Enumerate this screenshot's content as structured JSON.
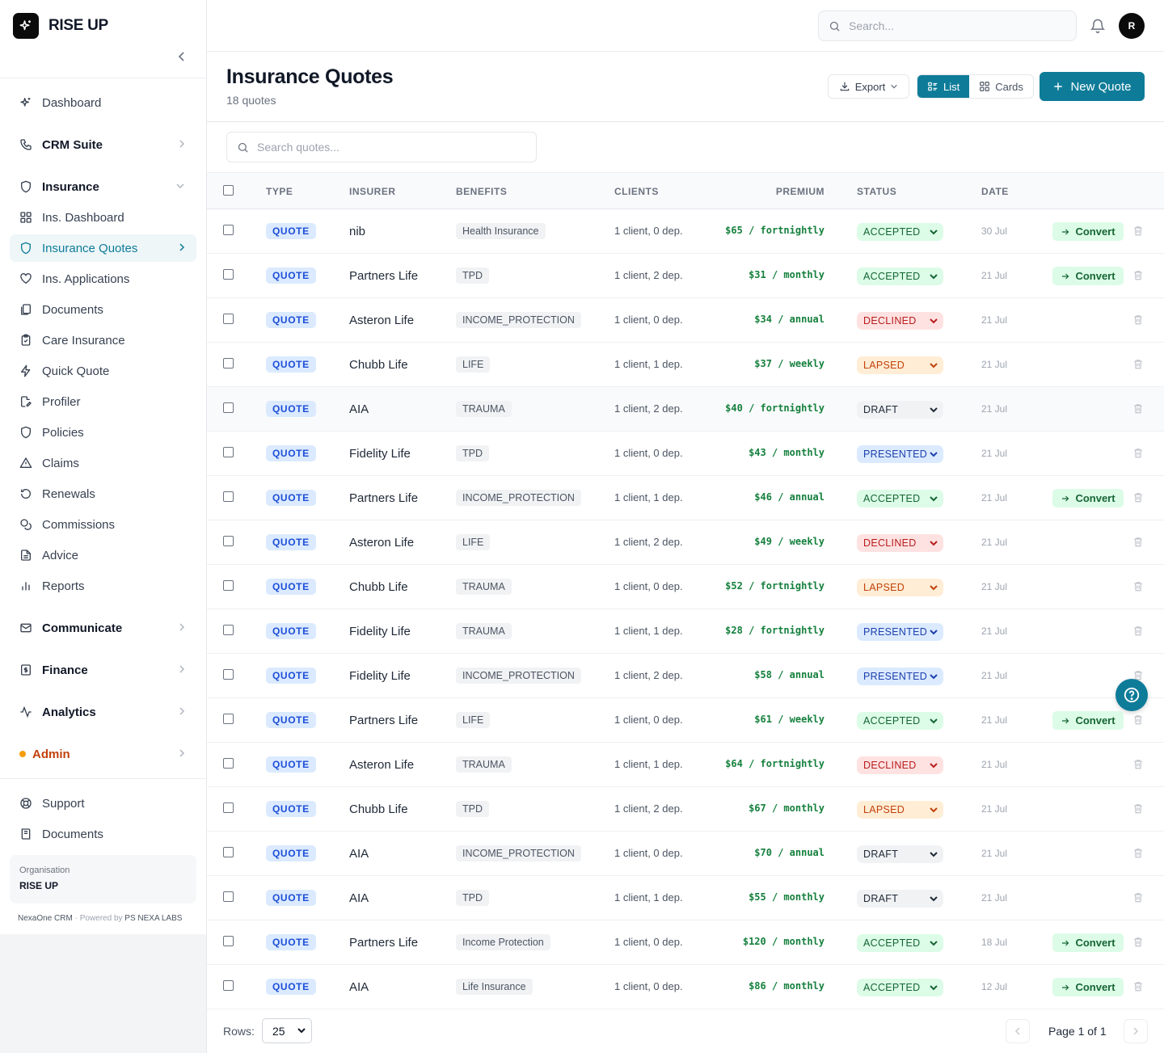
{
  "brand": {
    "name": "RISE UP"
  },
  "topbar": {
    "search_placeholder": "Search...",
    "avatar_initial": "R"
  },
  "sidebar": {
    "dashboard": "Dashboard",
    "crm": "CRM Suite",
    "insurance": "Insurance",
    "items": [
      {
        "label": "Ins. Dashboard",
        "icon": "grid-icon"
      },
      {
        "label": "Insurance Quotes",
        "icon": "shield-icon",
        "active": true
      },
      {
        "label": "Ins. Applications",
        "icon": "heart-icon"
      },
      {
        "label": "Documents",
        "icon": "files-icon"
      },
      {
        "label": "Care Insurance",
        "icon": "clipboard-icon"
      },
      {
        "label": "Quick Quote",
        "icon": "bolt-icon"
      },
      {
        "label": "Profiler",
        "icon": "file-edit-icon"
      },
      {
        "label": "Policies",
        "icon": "shield-icon"
      },
      {
        "label": "Claims",
        "icon": "warning-icon"
      },
      {
        "label": "Renewals",
        "icon": "refresh-icon"
      },
      {
        "label": "Commissions",
        "icon": "coins-icon"
      },
      {
        "label": "Advice",
        "icon": "document-icon"
      },
      {
        "label": "Reports",
        "icon": "bar-chart-icon"
      }
    ],
    "communicate": "Communicate",
    "finance": "Finance",
    "analytics": "Analytics",
    "admin": "Admin",
    "support": "Support",
    "documents": "Documents",
    "org_label": "Organisation",
    "org_name": "RISE UP",
    "powered_app": "NexaOne CRM",
    "powered_by": " · Powered by ",
    "powered_company": "PS NEXA LABS"
  },
  "page": {
    "title": "Insurance Quotes",
    "count": "18 quotes",
    "export_label": "Export",
    "list_label": "List",
    "cards_label": "Cards",
    "new_label": "New Quote",
    "search_placeholder": "Search quotes..."
  },
  "table": {
    "columns": {
      "type": "TYPE",
      "insurer": "INSURER",
      "benefits": "BENEFITS",
      "clients": "CLIENTS",
      "premium": "PREMIUM",
      "status": "STATUS",
      "date": "DATE"
    },
    "convert_label": "Convert",
    "rows": [
      {
        "type": "QUOTE",
        "insurer": "nib",
        "benefit": "Health Insurance",
        "clients": "1 client, 0 dep.",
        "premium": "$65 / fortnightly",
        "status": "ACCEPTED",
        "date": "30 Jul",
        "convert": true
      },
      {
        "type": "QUOTE",
        "insurer": "Partners Life",
        "benefit": "TPD",
        "clients": "1 client, 2 dep.",
        "premium": "$31 / monthly",
        "status": "ACCEPTED",
        "date": "21 Jul",
        "convert": true
      },
      {
        "type": "QUOTE",
        "insurer": "Asteron Life",
        "benefit": "INCOME_PROTECTION",
        "clients": "1 client, 0 dep.",
        "premium": "$34 / annual",
        "status": "DECLINED",
        "date": "21 Jul",
        "convert": false
      },
      {
        "type": "QUOTE",
        "insurer": "Chubb Life",
        "benefit": "LIFE",
        "clients": "1 client, 1 dep.",
        "premium": "$37 / weekly",
        "status": "LAPSED",
        "date": "21 Jul",
        "convert": false
      },
      {
        "type": "QUOTE",
        "insurer": "AIA",
        "benefit": "TRAUMA",
        "clients": "1 client, 2 dep.",
        "premium": "$40 / fortnightly",
        "status": "DRAFT",
        "date": "21 Jul",
        "convert": false
      },
      {
        "type": "QUOTE",
        "insurer": "Fidelity Life",
        "benefit": "TPD",
        "clients": "1 client, 0 dep.",
        "premium": "$43 / monthly",
        "status": "PRESENTED",
        "date": "21 Jul",
        "convert": false
      },
      {
        "type": "QUOTE",
        "insurer": "Partners Life",
        "benefit": "INCOME_PROTECTION",
        "clients": "1 client, 1 dep.",
        "premium": "$46 / annual",
        "status": "ACCEPTED",
        "date": "21 Jul",
        "convert": true
      },
      {
        "type": "QUOTE",
        "insurer": "Asteron Life",
        "benefit": "LIFE",
        "clients": "1 client, 2 dep.",
        "premium": "$49 / weekly",
        "status": "DECLINED",
        "date": "21 Jul",
        "convert": false
      },
      {
        "type": "QUOTE",
        "insurer": "Chubb Life",
        "benefit": "TRAUMA",
        "clients": "1 client, 0 dep.",
        "premium": "$52 / fortnightly",
        "status": "LAPSED",
        "date": "21 Jul",
        "convert": false
      },
      {
        "type": "QUOTE",
        "insurer": "Fidelity Life",
        "benefit": "TRAUMA",
        "clients": "1 client, 1 dep.",
        "premium": "$28 / fortnightly",
        "status": "PRESENTED",
        "date": "21 Jul",
        "convert": false
      },
      {
        "type": "QUOTE",
        "insurer": "Fidelity Life",
        "benefit": "INCOME_PROTECTION",
        "clients": "1 client, 2 dep.",
        "premium": "$58 / annual",
        "status": "PRESENTED",
        "date": "21 Jul",
        "convert": false
      },
      {
        "type": "QUOTE",
        "insurer": "Partners Life",
        "benefit": "LIFE",
        "clients": "1 client, 0 dep.",
        "premium": "$61 / weekly",
        "status": "ACCEPTED",
        "date": "21 Jul",
        "convert": true
      },
      {
        "type": "QUOTE",
        "insurer": "Asteron Life",
        "benefit": "TRAUMA",
        "clients": "1 client, 1 dep.",
        "premium": "$64 / fortnightly",
        "status": "DECLINED",
        "date": "21 Jul",
        "convert": false
      },
      {
        "type": "QUOTE",
        "insurer": "Chubb Life",
        "benefit": "TPD",
        "clients": "1 client, 2 dep.",
        "premium": "$67 / monthly",
        "status": "LAPSED",
        "date": "21 Jul",
        "convert": false
      },
      {
        "type": "QUOTE",
        "insurer": "AIA",
        "benefit": "INCOME_PROTECTION",
        "clients": "1 client, 0 dep.",
        "premium": "$70 / annual",
        "status": "DRAFT",
        "date": "21 Jul",
        "convert": false
      },
      {
        "type": "QUOTE",
        "insurer": "AIA",
        "benefit": "TPD",
        "clients": "1 client, 1 dep.",
        "premium": "$55 / monthly",
        "status": "DRAFT",
        "date": "21 Jul",
        "convert": false
      },
      {
        "type": "QUOTE",
        "insurer": "Partners Life",
        "benefit": "Income Protection",
        "clients": "1 client, 0 dep.",
        "premium": "$120 / monthly",
        "status": "ACCEPTED",
        "date": "18 Jul",
        "convert": true
      },
      {
        "type": "QUOTE",
        "insurer": "AIA",
        "benefit": "Life Insurance",
        "clients": "1 client, 0 dep.",
        "premium": "$86 / monthly",
        "status": "ACCEPTED",
        "date": "12 Jul",
        "convert": true
      }
    ]
  },
  "footer": {
    "rows_label": "Rows:",
    "rows_value": "25",
    "page_text": "Page 1 of 1"
  },
  "colors": {
    "accent": "#0e7c99",
    "premium": "#15803d"
  }
}
